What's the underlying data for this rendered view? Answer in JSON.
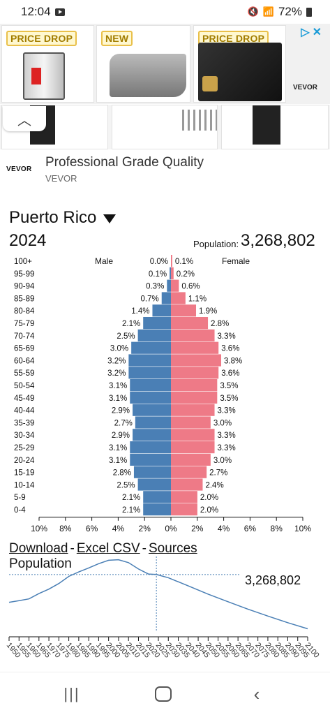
{
  "status": {
    "time": "12:04",
    "battery": "72%"
  },
  "ad": {
    "badges": [
      "PRICE DROP",
      "NEW",
      "PRICE DROP"
    ],
    "adchoices": "▷✕",
    "brand_small": "VEVOR",
    "brand_logo": "VEVOR",
    "headline": "Professional Grade Quality",
    "advertiser": "VEVOR"
  },
  "country": "Puerto Rico",
  "year": "2024",
  "population_label": "Population:",
  "population_value": "3,268,802",
  "pyramid": {
    "male_label": "Male",
    "female_label": "Female",
    "xticks": [
      "10%",
      "8%",
      "6%",
      "4%",
      "2%",
      "0%",
      "2%",
      "4%",
      "6%",
      "8%",
      "10%"
    ],
    "colors": {
      "male": "#4a7fb5",
      "female": "#ee7a87"
    }
  },
  "chart_data": [
    {
      "type": "bar",
      "title": "Puerto Rico 2024",
      "xlabel": "",
      "ylabel": "",
      "xlim": [
        -10,
        10
      ],
      "categories": [
        "100+",
        "95-99",
        "90-94",
        "85-89",
        "80-84",
        "75-79",
        "70-74",
        "65-69",
        "60-64",
        "55-59",
        "50-54",
        "45-49",
        "40-44",
        "35-39",
        "30-34",
        "25-29",
        "20-24",
        "15-19",
        "10-14",
        "5-9",
        "0-4"
      ],
      "series": [
        {
          "name": "Male",
          "values": [
            0.0,
            0.1,
            0.3,
            0.7,
            1.4,
            2.1,
            2.5,
            3.0,
            3.2,
            3.2,
            3.1,
            3.1,
            2.9,
            2.7,
            2.9,
            3.1,
            3.1,
            2.8,
            2.5,
            2.1,
            2.1
          ]
        },
        {
          "name": "Female",
          "values": [
            0.1,
            0.2,
            0.6,
            1.1,
            1.9,
            2.8,
            3.3,
            3.6,
            3.8,
            3.6,
            3.5,
            3.5,
            3.3,
            3.0,
            3.3,
            3.3,
            3.0,
            2.7,
            2.4,
            2.0,
            2.0
          ]
        }
      ]
    },
    {
      "type": "line",
      "title": "Population",
      "xlabel": "",
      "ylabel": "",
      "x": [
        1950,
        1955,
        1960,
        1965,
        1970,
        1975,
        1980,
        1985,
        1990,
        1995,
        2000,
        2005,
        2010,
        2015,
        2020,
        2024,
        2030,
        2040,
        2050,
        2060,
        2070,
        2080,
        2090,
        2100
      ],
      "series": [
        {
          "name": "Population",
          "values": [
            2.22,
            2.28,
            2.35,
            2.55,
            2.72,
            2.93,
            3.2,
            3.37,
            3.52,
            3.68,
            3.81,
            3.83,
            3.72,
            3.48,
            3.29,
            3.27,
            3.15,
            2.84,
            2.53,
            2.24,
            1.96,
            1.7,
            1.45,
            1.22
          ]
        }
      ],
      "annotations": [
        "3,268,802"
      ],
      "xticks": [
        "1950",
        "1955",
        "1960",
        "1965",
        "1970",
        "1975",
        "1980",
        "1985",
        "1990",
        "1995",
        "2000",
        "2005",
        "2010",
        "2015",
        "2020",
        "2025",
        "2030",
        "2035",
        "2040",
        "2045",
        "2050",
        "2055",
        "2060",
        "2065",
        "2070",
        "2075",
        "2080",
        "2085",
        "2090",
        "2095",
        "2100"
      ]
    }
  ],
  "links": {
    "download": "Download",
    "sep1": "-",
    "excel": "Excel CSV",
    "sep2": "-",
    "sources": "Sources"
  },
  "nav": {
    "recent": "|||",
    "back": "‹"
  }
}
